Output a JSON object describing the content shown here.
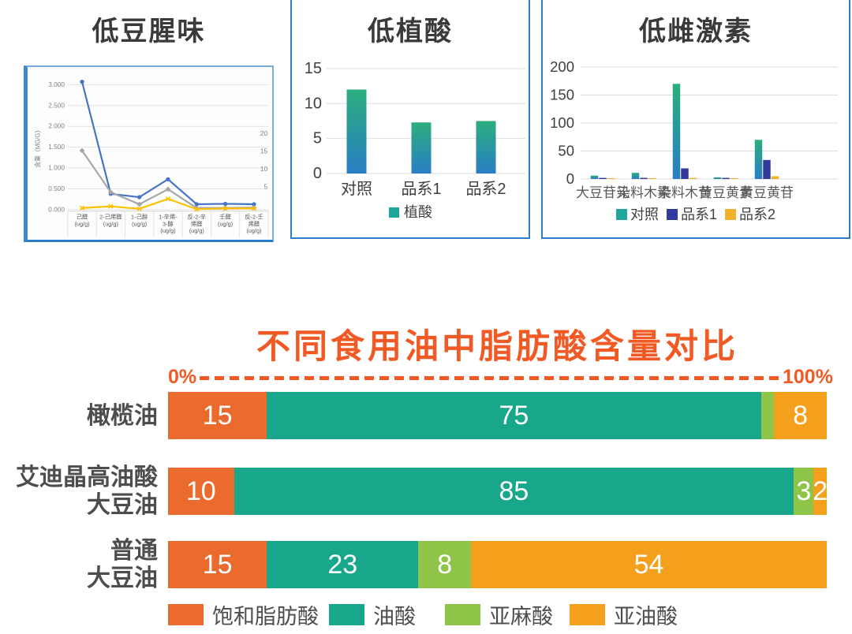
{
  "panels": [
    {
      "title": "低豆腥味"
    },
    {
      "title": "低植酸"
    },
    {
      "title": "低雌激素"
    }
  ],
  "bottom": {
    "title": "不同食用油中脂肪酸含量对比",
    "axis_start": "0%",
    "axis_end": "100%"
  },
  "colors": {
    "panel_border": "#2B7FC9",
    "bar_gradient_top": "#2BAE7D",
    "bar_gradient_bottom": "#2A7EC5",
    "navy": "#333A9D",
    "yellow": "#EFB32B",
    "teal_legend": "#1CA79B",
    "accent_orange": "#F15A25",
    "label_gray": "#4D4D4F"
  },
  "chart_data": [
    {
      "type": "line",
      "title": "低豆腥味",
      "ylabel": "含量（MG/G）",
      "y_ticks": [
        "0.000",
        "0.500",
        "1.000",
        "1.500",
        "2.000",
        "2.500",
        "3.000"
      ],
      "y2_ticks": [
        "5",
        "10",
        "15",
        "20"
      ],
      "ylim": [
        0,
        3.25
      ],
      "grid": true,
      "categories": [
        [
          "己醛",
          "(ug/g)"
        ],
        [
          "2-己烯醛",
          "(ug/g)"
        ],
        [
          "1-己醇",
          "(ug/g)"
        ],
        [
          "1-辛烯-",
          "3-醇",
          "(ug/g)"
        ],
        [
          "反-2-辛",
          "烯醛",
          "(ug/g)"
        ],
        [
          "壬醛",
          "(ug/g)"
        ],
        [
          "反-2-壬",
          "烯醛",
          "(ug/g)"
        ]
      ],
      "series": [
        {
          "name": "blue",
          "color": "#4472C4",
          "marker": "circle",
          "values": [
            3.07,
            0.38,
            0.3,
            0.73,
            0.13,
            0.14,
            0.13
          ]
        },
        {
          "name": "gray",
          "color": "#A6A6A6",
          "marker": "diamond",
          "values": [
            1.42,
            0.42,
            0.13,
            0.49,
            0.04,
            0.04,
            0.05
          ]
        },
        {
          "name": "yellow",
          "color": "#FFC000",
          "marker": "x",
          "values": [
            0.04,
            0.08,
            0.02,
            0.26,
            0.01,
            0.03,
            0.03
          ]
        }
      ]
    },
    {
      "type": "bar",
      "title": "低植酸",
      "categories": [
        "对照",
        "品系1",
        "品系2"
      ],
      "values": [
        12,
        7.3,
        7.5
      ],
      "ylim": [
        0,
        15
      ],
      "y_ticks": [
        "0",
        "5",
        "10",
        "15"
      ],
      "grid": true,
      "legend": [
        {
          "label": "植酸",
          "color": "#1CA79B"
        }
      ]
    },
    {
      "type": "bar",
      "title": "低雌激素",
      "categories": [
        "大豆苷元",
        "染料木素",
        "染料木苷",
        "黄豆黄素",
        "黄豆黄苷"
      ],
      "series": [
        {
          "name": "对照",
          "color": "teal-gradient",
          "values": [
            6,
            11,
            170,
            3,
            70
          ]
        },
        {
          "name": "品系1",
          "color": "#333A9D",
          "values": [
            2,
            2,
            19,
            2,
            34
          ]
        },
        {
          "name": "品系2",
          "color": "#EFB32B",
          "values": [
            0.5,
            0.5,
            2,
            0.3,
            5
          ]
        }
      ],
      "ylim": [
        0,
        200
      ],
      "y_ticks": [
        "0",
        "50",
        "100",
        "150",
        "200"
      ],
      "grid": true,
      "legend_position": "bottom"
    },
    {
      "type": "bar",
      "orientation": "horizontal-stacked",
      "title": "不同食用油中脂肪酸含量对比",
      "categories": [
        [
          "橄榄油"
        ],
        [
          "艾迪晶高油酸",
          "大豆油"
        ],
        [
          "普通",
          "大豆油"
        ]
      ],
      "series": [
        {
          "name": "饱和脂肪酸",
          "color": "#EB6A2E",
          "values": [
            15,
            10,
            15
          ]
        },
        {
          "name": "油酸",
          "color": "#18A78A",
          "values": [
            75,
            85,
            23
          ]
        },
        {
          "name": "亚麻酸",
          "color": "#8EC549",
          "values": [
            2,
            3,
            8
          ]
        },
        {
          "name": "亚油酸",
          "color": "#F4A01C",
          "values": [
            8,
            2,
            54
          ]
        }
      ],
      "segment_labels": [
        [
          "15",
          "75",
          "",
          "8"
        ],
        [
          "10",
          "85",
          "3",
          "2"
        ],
        [
          "15",
          "23",
          "8",
          "54"
        ]
      ],
      "xlim": [
        0,
        100
      ],
      "legend_position": "bottom"
    }
  ]
}
